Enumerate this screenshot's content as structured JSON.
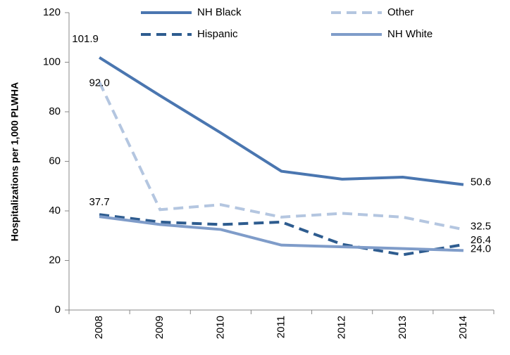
{
  "chart_data": {
    "type": "line",
    "y_label": "Hospitalizations per 1,000 PLWHA",
    "categories": [
      "2008",
      "2009",
      "2010",
      "2011",
      "2012",
      "2013",
      "2014"
    ],
    "ylim": [
      0,
      120
    ],
    "yticks": [
      0,
      20,
      40,
      60,
      80,
      100,
      120
    ],
    "series": [
      {
        "name": "NH Black",
        "color": "#4a76b0",
        "dashed": false,
        "values": [
          101.9,
          86.5,
          71.5,
          56.0,
          52.8,
          53.6,
          50.6
        ],
        "value_labels": [
          "101.9",
          null,
          null,
          null,
          null,
          null,
          "50.6"
        ]
      },
      {
        "name": "Hispanic",
        "color": "#2e5c8f",
        "dashed": true,
        "values": [
          38.5,
          35.5,
          34.5,
          35.5,
          26.5,
          22.3,
          26.4
        ],
        "value_labels": [
          null,
          null,
          null,
          null,
          null,
          null,
          "26.4"
        ]
      },
      {
        "name": "Other",
        "color": "#b4c6e0",
        "dashed": true,
        "values": [
          92.0,
          40.5,
          42.5,
          37.5,
          39.0,
          37.5,
          32.5
        ],
        "value_labels": [
          "92.0",
          null,
          null,
          null,
          null,
          null,
          "32.5"
        ]
      },
      {
        "name": "NH White",
        "color": "#7f9cc9",
        "dashed": false,
        "values": [
          37.7,
          34.5,
          32.5,
          26.2,
          25.5,
          24.8,
          24.0
        ],
        "value_labels": [
          "37.7",
          null,
          null,
          null,
          null,
          null,
          "24.0"
        ]
      }
    ]
  }
}
